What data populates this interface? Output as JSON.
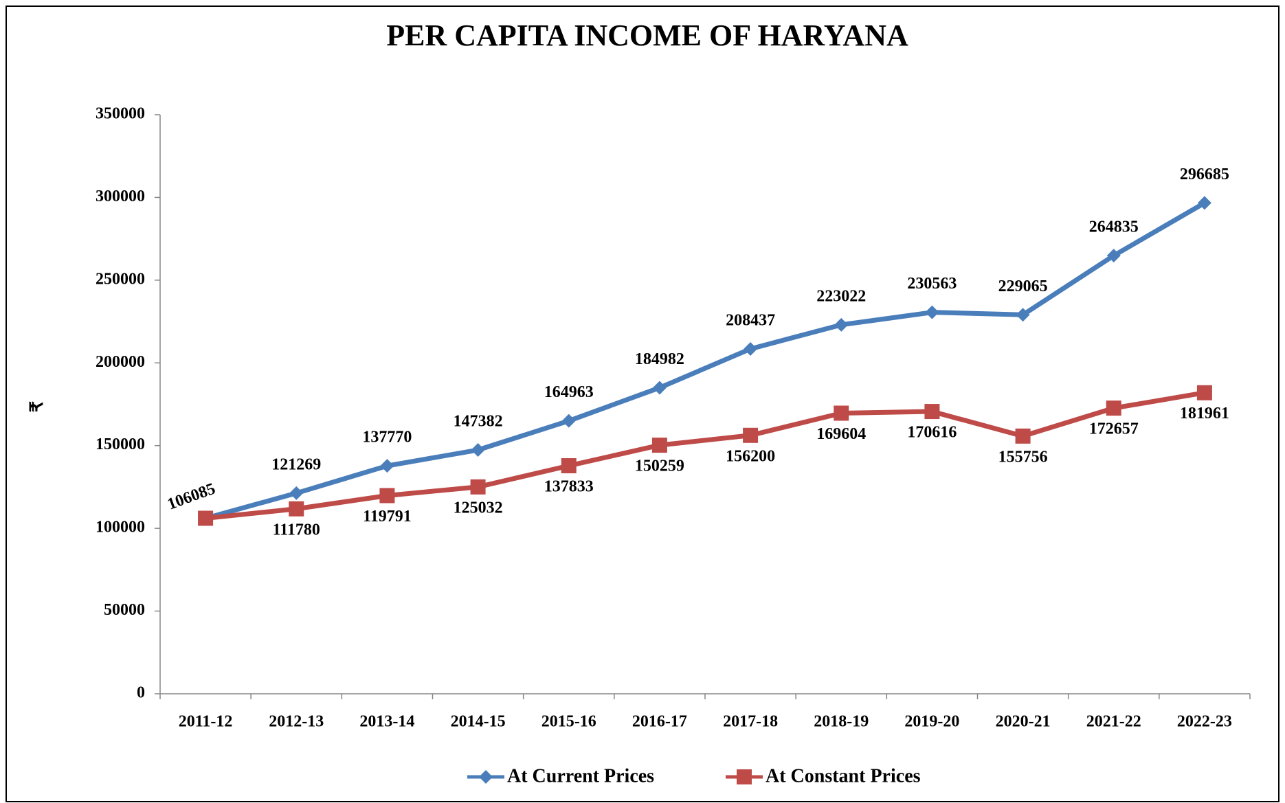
{
  "chart_data": {
    "type": "line",
    "title": "PER CAPITA INCOME OF HARYANA",
    "y_label": "₹",
    "categories": [
      "2011-12",
      "2012-13",
      "2013-14",
      "2014-15",
      "2015-16",
      "2016-17",
      "2017-18",
      "2018-19",
      "2019-20",
      "2020-21",
      "2021-22",
      "2022-23"
    ],
    "series": [
      {
        "name": "At Current Prices",
        "color": "#4a7ebb",
        "marker": "diamond",
        "values": [
          106085,
          121269,
          137770,
          147382,
          164963,
          184982,
          208437,
          223022,
          230563,
          229065,
          264835,
          296685
        ]
      },
      {
        "name": "At Constant Prices",
        "color": "#be4b48",
        "marker": "square",
        "values": [
          106085,
          111780,
          119791,
          125032,
          137833,
          150259,
          156200,
          169604,
          170616,
          155756,
          172657,
          181961
        ]
      }
    ],
    "ylim": [
      0,
      350000
    ],
    "yticks": [
      0,
      50000,
      100000,
      150000,
      200000,
      250000,
      300000,
      350000
    ],
    "legend": "bottom"
  }
}
